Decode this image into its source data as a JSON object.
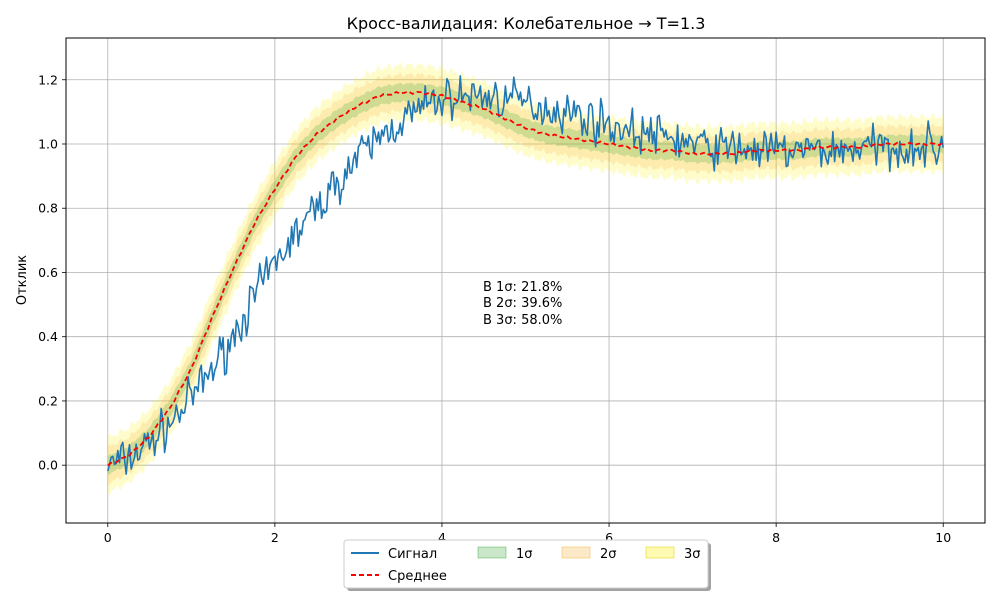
{
  "chart_data": {
    "type": "line",
    "title": "Кросс-валидация: Колебательное → T=1.3",
    "xlabel": "",
    "ylabel": "Отклик",
    "xlim": [
      -0.5,
      10.5
    ],
    "ylim": [
      -0.18,
      1.33
    ],
    "x_ticks": [
      0,
      2,
      4,
      6,
      8,
      10
    ],
    "x_tick_labels": [
      "0",
      "2",
      "4",
      "6",
      "8",
      "10"
    ],
    "y_ticks": [
      0.0,
      0.2,
      0.4,
      0.6,
      0.8,
      1.0,
      1.2
    ],
    "y_tick_labels": [
      "0.0",
      "0.2",
      "0.4",
      "0.6",
      "0.8",
      "1.0",
      "1.2"
    ],
    "grid": true,
    "legend_position": "bottom-center, outside plot",
    "annotations": [
      "В 1σ: 21.8%",
      "В 2σ: 39.6%",
      "В 3σ: 58.0%"
    ],
    "series": [
      {
        "name": "Сигнал",
        "style": "solid",
        "color": "#1f77b4",
        "x": [
          0,
          0.25,
          0.5,
          0.75,
          1,
          1.25,
          1.5,
          1.75,
          2,
          2.25,
          2.5,
          2.75,
          3,
          3.25,
          3.5,
          3.75,
          4,
          4.25,
          4.5,
          4.75,
          5,
          5.25,
          5.5,
          5.75,
          6,
          6.25,
          6.5,
          6.75,
          7,
          7.25,
          7.5,
          7.75,
          8,
          8.25,
          8.5,
          8.75,
          9,
          9.25,
          9.5,
          9.75,
          10
        ],
        "values": [
          0.0,
          0.02,
          0.07,
          0.13,
          0.21,
          0.3,
          0.4,
          0.52,
          0.63,
          0.72,
          0.8,
          0.88,
          0.96,
          1.02,
          1.07,
          1.11,
          1.14,
          1.15,
          1.15,
          1.14,
          1.13,
          1.11,
          1.1,
          1.08,
          1.06,
          1.04,
          1.03,
          1.02,
          1.0,
          0.99,
          0.99,
          0.98,
          0.98,
          0.98,
          0.98,
          0.98,
          0.99,
          0.99,
          0.99,
          0.99,
          0.99
        ],
        "noise_amplitude": 0.045
      },
      {
        "name": "Среднее",
        "style": "dashed",
        "color": "#ff0000",
        "x": [
          0,
          0.25,
          0.5,
          0.75,
          1,
          1.25,
          1.5,
          1.75,
          2,
          2.25,
          2.5,
          2.75,
          3,
          3.25,
          3.5,
          3.75,
          4,
          4.25,
          4.5,
          4.75,
          5,
          5.25,
          5.5,
          5.75,
          6,
          6.25,
          6.5,
          6.75,
          7,
          7.25,
          7.5,
          7.75,
          8,
          8.25,
          8.5,
          8.75,
          9,
          9.25,
          9.5,
          9.75,
          10
        ],
        "values": [
          0.0,
          0.03,
          0.09,
          0.18,
          0.3,
          0.46,
          0.61,
          0.75,
          0.86,
          0.96,
          1.03,
          1.08,
          1.12,
          1.15,
          1.16,
          1.16,
          1.15,
          1.13,
          1.11,
          1.08,
          1.05,
          1.03,
          1.02,
          1.01,
          1.0,
          0.99,
          0.98,
          0.98,
          0.97,
          0.97,
          0.97,
          0.98,
          0.98,
          0.98,
          0.99,
          0.99,
          0.99,
          1.0,
          1.0,
          1.0,
          1.0
        ]
      }
    ],
    "bands": [
      {
        "name": "1σ",
        "half_width": 0.028,
        "color": "#2ca02c",
        "opacity": 0.22
      },
      {
        "name": "2σ",
        "half_width": 0.056,
        "color": "#f5a623",
        "opacity": 0.18
      },
      {
        "name": "3σ",
        "half_width": 0.085,
        "color": "#ffee00",
        "opacity": 0.2
      }
    ]
  }
}
